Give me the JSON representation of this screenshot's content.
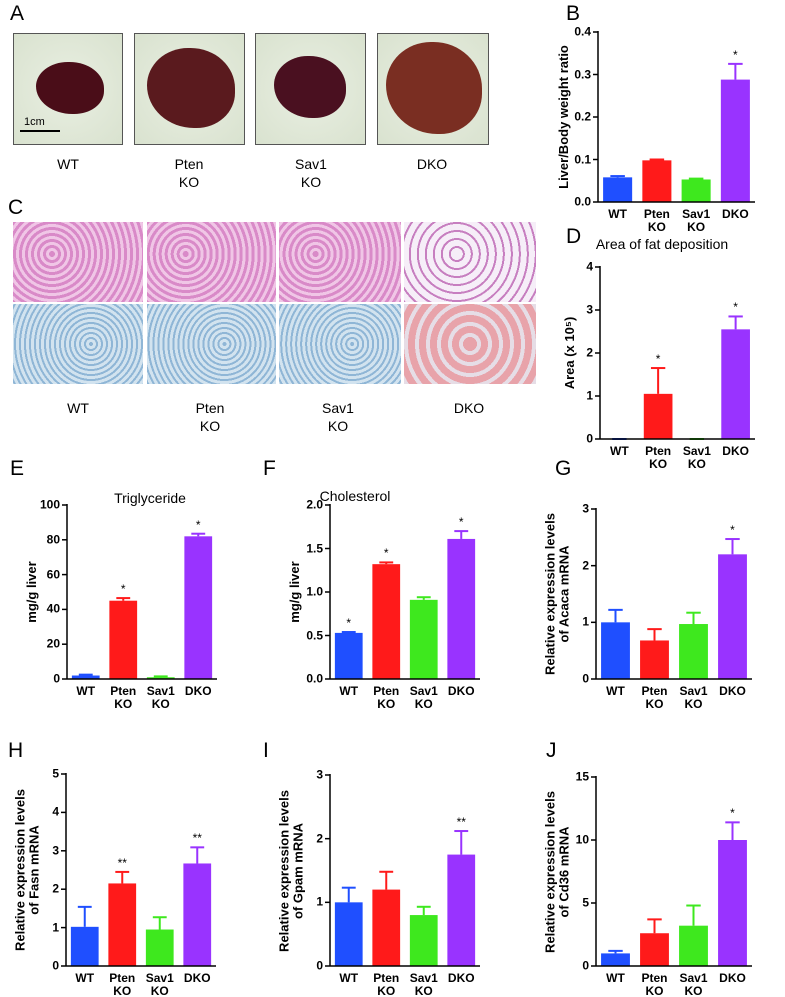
{
  "figure": {
    "A": {
      "letter": "A",
      "captions": [
        "WT",
        "Pten KO",
        "Sav1 KO",
        "DKO"
      ],
      "scale_bar": "1cm"
    },
    "C": {
      "letter": "C",
      "captions": [
        "WT",
        "Pten KO",
        "Sav1 KO",
        "DKO"
      ]
    }
  },
  "chart_data": [
    {
      "type": "bar",
      "label": "B",
      "y_label": "Liver/Body weight ratio",
      "categories": [
        "WT",
        "Pten KO",
        "Sav1 KO",
        "DKO"
      ],
      "values": [
        0.058,
        0.098,
        0.053,
        0.288
      ],
      "errors": [
        0.003,
        0.002,
        0.002,
        0.037
      ],
      "annotations": [
        null,
        null,
        null,
        "*"
      ],
      "colors": [
        "#1f4fff",
        "#ff1a1a",
        "#3ee81e",
        "#9933ff"
      ],
      "ylim": [
        0,
        0.4
      ],
      "yticks": [
        {
          "value": 0,
          "label": "0.0"
        },
        0.1,
        0.2,
        0.3,
        0.4
      ]
    },
    {
      "type": "bar",
      "label": "D",
      "title": "Area of fat deposition",
      "y_label": "Area (x 10⁵)",
      "categories": [
        "WT",
        "Pten KO",
        "Sav1 KO",
        "DKO"
      ],
      "values": [
        0,
        1.05,
        0,
        2.55
      ],
      "errors": [
        0,
        0.6,
        0,
        0.3
      ],
      "annotations": [
        null,
        "*",
        null,
        "*"
      ],
      "colors": [
        "#1f4fff",
        "#ff1a1a",
        "#3ee81e",
        "#9933ff"
      ],
      "ylim": [
        0,
        4
      ],
      "yticks": [
        0,
        1,
        2,
        3,
        4
      ]
    },
    {
      "type": "bar",
      "label": "E",
      "title": "Triglyceride",
      "y_label": "mg/g liver",
      "categories": [
        "WT",
        "Pten KO",
        "Sav1 KO",
        "DKO"
      ],
      "values": [
        2,
        45,
        1,
        82
      ],
      "errors": [
        0.5,
        1.5,
        0.5,
        1.5
      ],
      "annotations": [
        null,
        "*",
        null,
        "*"
      ],
      "colors": [
        "#1f4fff",
        "#ff1a1a",
        "#3ee81e",
        "#9933ff"
      ],
      "ylim": [
        0,
        100
      ],
      "yticks": [
        0,
        20,
        40,
        60,
        80,
        100
      ]
    },
    {
      "type": "bar",
      "label": "F",
      "title": "Cholesterol",
      "y_label": "mg/g liver",
      "categories": [
        "WT",
        "Pten KO",
        "Sav1 KO",
        "DKO"
      ],
      "values": [
        0.53,
        1.32,
        0.91,
        1.61
      ],
      "errors": [
        0.01,
        0.02,
        0.03,
        0.09
      ],
      "annotations": [
        "*",
        "*",
        null,
        "*"
      ],
      "colors": [
        "#1f4fff",
        "#ff1a1a",
        "#3ee81e",
        "#9933ff"
      ],
      "ylim": [
        0,
        2
      ],
      "yticks": [
        {
          "value": 0,
          "label": "0.0"
        },
        0.5,
        {
          "value": 1,
          "label": "1.0"
        },
        1.5,
        {
          "value": 2,
          "label": "2.0"
        }
      ]
    },
    {
      "type": "bar",
      "label": "G",
      "y_label": "Relative expression levels of Acaca mRNA",
      "categories": [
        "WT",
        "Pten KO",
        "Sav1 KO",
        "DKO"
      ],
      "values": [
        1.0,
        0.68,
        0.97,
        2.2
      ],
      "errors": [
        0.22,
        0.2,
        0.2,
        0.27
      ],
      "annotations": [
        null,
        null,
        null,
        "*"
      ],
      "colors": [
        "#1f4fff",
        "#ff1a1a",
        "#3ee81e",
        "#9933ff"
      ],
      "ylim": [
        0,
        3
      ],
      "yticks": [
        0,
        1,
        2,
        3
      ]
    },
    {
      "type": "bar",
      "label": "H",
      "y_label": "Relative expression levels of Fasn mRNA",
      "categories": [
        "WT",
        "Pten KO",
        "Sav1 KO",
        "DKO"
      ],
      "values": [
        1.02,
        2.15,
        0.95,
        2.67
      ],
      "errors": [
        0.52,
        0.3,
        0.32,
        0.42
      ],
      "annotations": [
        null,
        "**",
        null,
        "**"
      ],
      "colors": [
        "#1f4fff",
        "#ff1a1a",
        "#3ee81e",
        "#9933ff"
      ],
      "ylim": [
        0,
        5
      ],
      "yticks": [
        0,
        1,
        2,
        3,
        4,
        5
      ]
    },
    {
      "type": "bar",
      "label": "I",
      "y_label": "Relative expression levels of Gpam mRNA",
      "categories": [
        "WT",
        "Pten KO",
        "Sav1 KO",
        "DKO"
      ],
      "values": [
        1.0,
        1.2,
        0.8,
        1.75
      ],
      "errors": [
        0.23,
        0.28,
        0.13,
        0.37
      ],
      "annotations": [
        null,
        null,
        null,
        "**"
      ],
      "colors": [
        "#1f4fff",
        "#ff1a1a",
        "#3ee81e",
        "#9933ff"
      ],
      "ylim": [
        0,
        3
      ],
      "yticks": [
        0,
        1,
        2,
        3
      ]
    },
    {
      "type": "bar",
      "label": "J",
      "y_label": "Relative expression levels of Cd36 mRNA",
      "categories": [
        "WT",
        "Pten KO",
        "Sav1 KO",
        "DKO"
      ],
      "values": [
        1.0,
        2.6,
        3.2,
        10.0
      ],
      "errors": [
        0.2,
        1.1,
        1.6,
        1.4
      ],
      "annotations": [
        null,
        null,
        null,
        "*"
      ],
      "colors": [
        "#1f4fff",
        "#ff1a1a",
        "#3ee81e",
        "#9933ff"
      ],
      "ylim": [
        0,
        15
      ],
      "yticks": [
        0,
        5,
        10,
        15
      ]
    }
  ]
}
